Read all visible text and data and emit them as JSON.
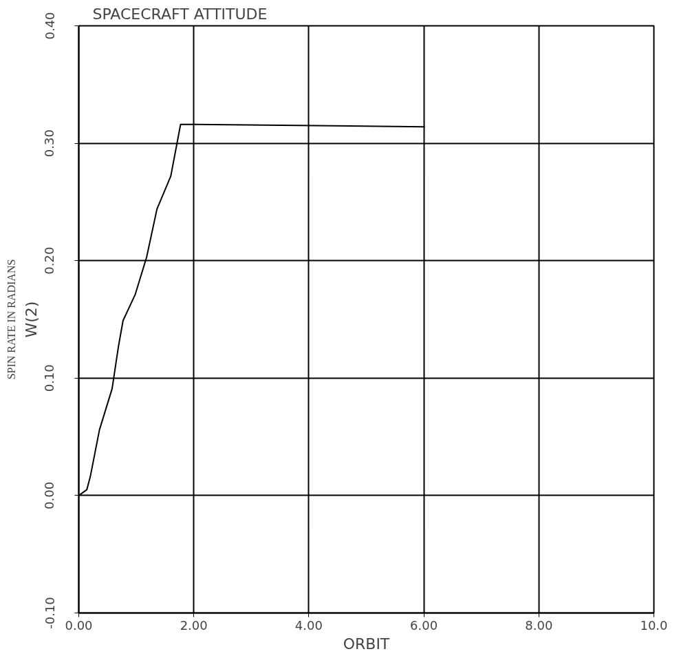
{
  "chart_data": {
    "type": "line",
    "title": "SPACECRAFT ATTITUDE",
    "xlabel": "ORBIT",
    "ylabel": "W(2)",
    "annotations": [
      "SPIN RATE IN RADIANS"
    ],
    "x": [
      0,
      0.14,
      0.2,
      0.36,
      0.58,
      0.69,
      0.77,
      0.98,
      1.18,
      1.36,
      1.6,
      1.77,
      2.04,
      6.02
    ],
    "series": [
      {
        "color": "#000000",
        "values": [
          0,
          0.005,
          0.016,
          0.056,
          0.091,
          0.127,
          0.149,
          0.171,
          0.203,
          0.244,
          0.272,
          0.316,
          0.316,
          0.314
        ]
      }
    ],
    "xlim": [
      0,
      10
    ],
    "ylim": [
      -0.1,
      0.4
    ],
    "xticks": [
      {
        "value": 0,
        "label": "0.00"
      },
      {
        "value": 2,
        "label": "2.00"
      },
      {
        "value": 4,
        "label": "4.00"
      },
      {
        "value": 6,
        "label": "6.00"
      },
      {
        "value": 8,
        "label": "8.00"
      },
      {
        "value": 10,
        "label": "10.0"
      }
    ],
    "yticks": [
      {
        "value": -0.1,
        "label": "-0.10"
      },
      {
        "value": 0,
        "label": "0.00"
      },
      {
        "value": 0.1,
        "label": "0.10"
      },
      {
        "value": 0.2,
        "label": "0.20"
      },
      {
        "value": 0.3,
        "label": "0.30"
      },
      {
        "value": 0.4,
        "label": "0.40"
      }
    ],
    "grid": true
  }
}
